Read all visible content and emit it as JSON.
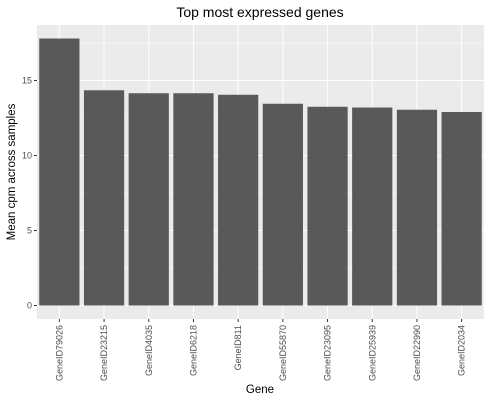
{
  "chart_data": {
    "type": "bar",
    "title": "Top most expressed genes",
    "xlabel": "Gene",
    "ylabel": "Mean cpm across samples",
    "categories": [
      "GeneID79026",
      "GeneID23215",
      "GeneID4035",
      "GeneID6218",
      "GeneID811",
      "GeneID55870",
      "GeneID23095",
      "GeneID25939",
      "GeneID22990",
      "GeneID2034"
    ],
    "values": [
      17.8,
      14.35,
      14.15,
      14.15,
      14.05,
      13.45,
      13.25,
      13.2,
      13.05,
      12.9
    ],
    "ylim": [
      -0.9,
      18.7
    ],
    "yticks": [
      0,
      5,
      10,
      15
    ],
    "grid": true,
    "colors": {
      "panel": "#ebebeb",
      "grid": "#ffffff",
      "bar": "#595959",
      "tick": "#333333"
    }
  }
}
